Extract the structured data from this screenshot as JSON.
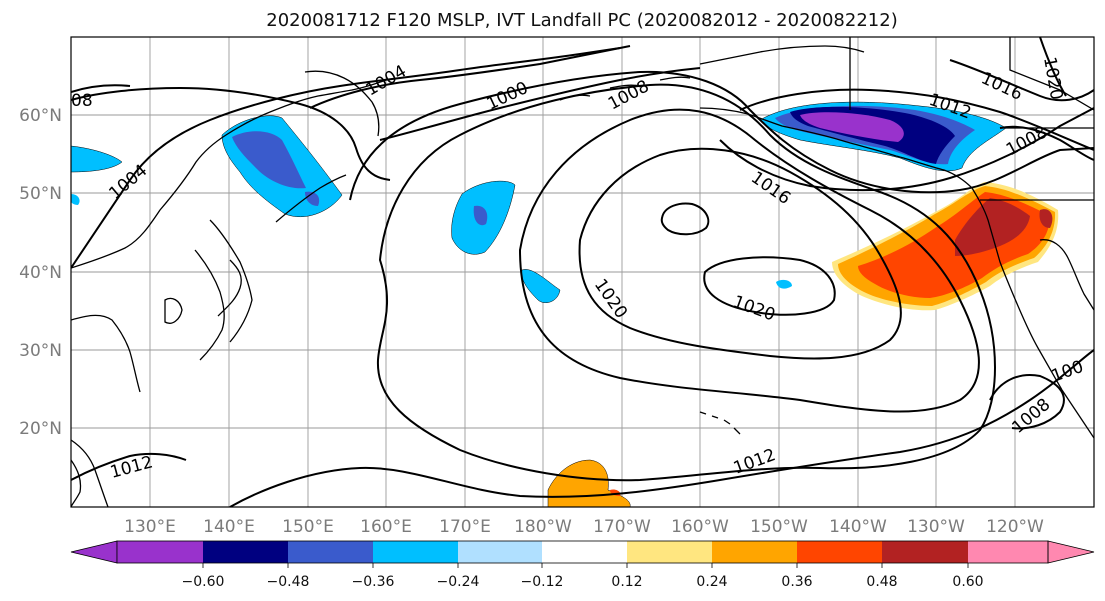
{
  "title": "2020081712 F120 MSLP, IVT Landfall PC (2020082012 - 2020082212)",
  "map": {
    "lon_labels": [
      "130°E",
      "140°E",
      "150°E",
      "160°E",
      "170°E",
      "180°W",
      "170°W",
      "160°W",
      "150°W",
      "140°W",
      "130°W",
      "120°W"
    ],
    "lat_labels": [
      "60°N",
      "50°N",
      "40°N",
      "30°N",
      "20°N"
    ],
    "isobar_labels": [
      {
        "name": "iso-label-1004-a",
        "text": "1004"
      },
      {
        "name": "iso-label-1004-b",
        "text": "1004"
      },
      {
        "name": "iso-label-1000",
        "text": "1000"
      },
      {
        "name": "iso-label-1008-a",
        "text": "1008"
      },
      {
        "name": "iso-label-1008-b",
        "text": "1008"
      },
      {
        "name": "iso-label-1008-c",
        "text": "1008"
      },
      {
        "name": "iso-label-1008-d",
        "text": "08"
      },
      {
        "name": "iso-label-1012-a",
        "text": "1012"
      },
      {
        "name": "iso-label-1012-b",
        "text": "1012"
      },
      {
        "name": "iso-label-1012-c",
        "text": "1012"
      },
      {
        "name": "iso-label-1016-a",
        "text": "1016"
      },
      {
        "name": "iso-label-1016-b",
        "text": "1016"
      },
      {
        "name": "iso-label-1020-a",
        "text": "1020"
      },
      {
        "name": "iso-label-1020-b",
        "text": "1020"
      },
      {
        "name": "iso-label-1020-c",
        "text": "1020"
      },
      {
        "name": "iso-label-1000-b",
        "text": "100"
      }
    ]
  },
  "colorbar": {
    "ticks": [
      "−0.60",
      "−0.48",
      "−0.36",
      "−0.24",
      "−0.12",
      "0.12",
      "0.24",
      "0.36",
      "0.48",
      "0.60"
    ],
    "colors": {
      "under": "#9932cc",
      "b1": "#9932cc",
      "b2": "#000080",
      "b3": "#3a5bcc",
      "b4": "#00bfff",
      "b5": "#b0e0ff",
      "b6": "#ffffff",
      "b7": "#ffe680",
      "b8": "#ffa500",
      "b9": "#ff4500",
      "b10": "#b22222",
      "over": "#ff88b0"
    }
  }
}
